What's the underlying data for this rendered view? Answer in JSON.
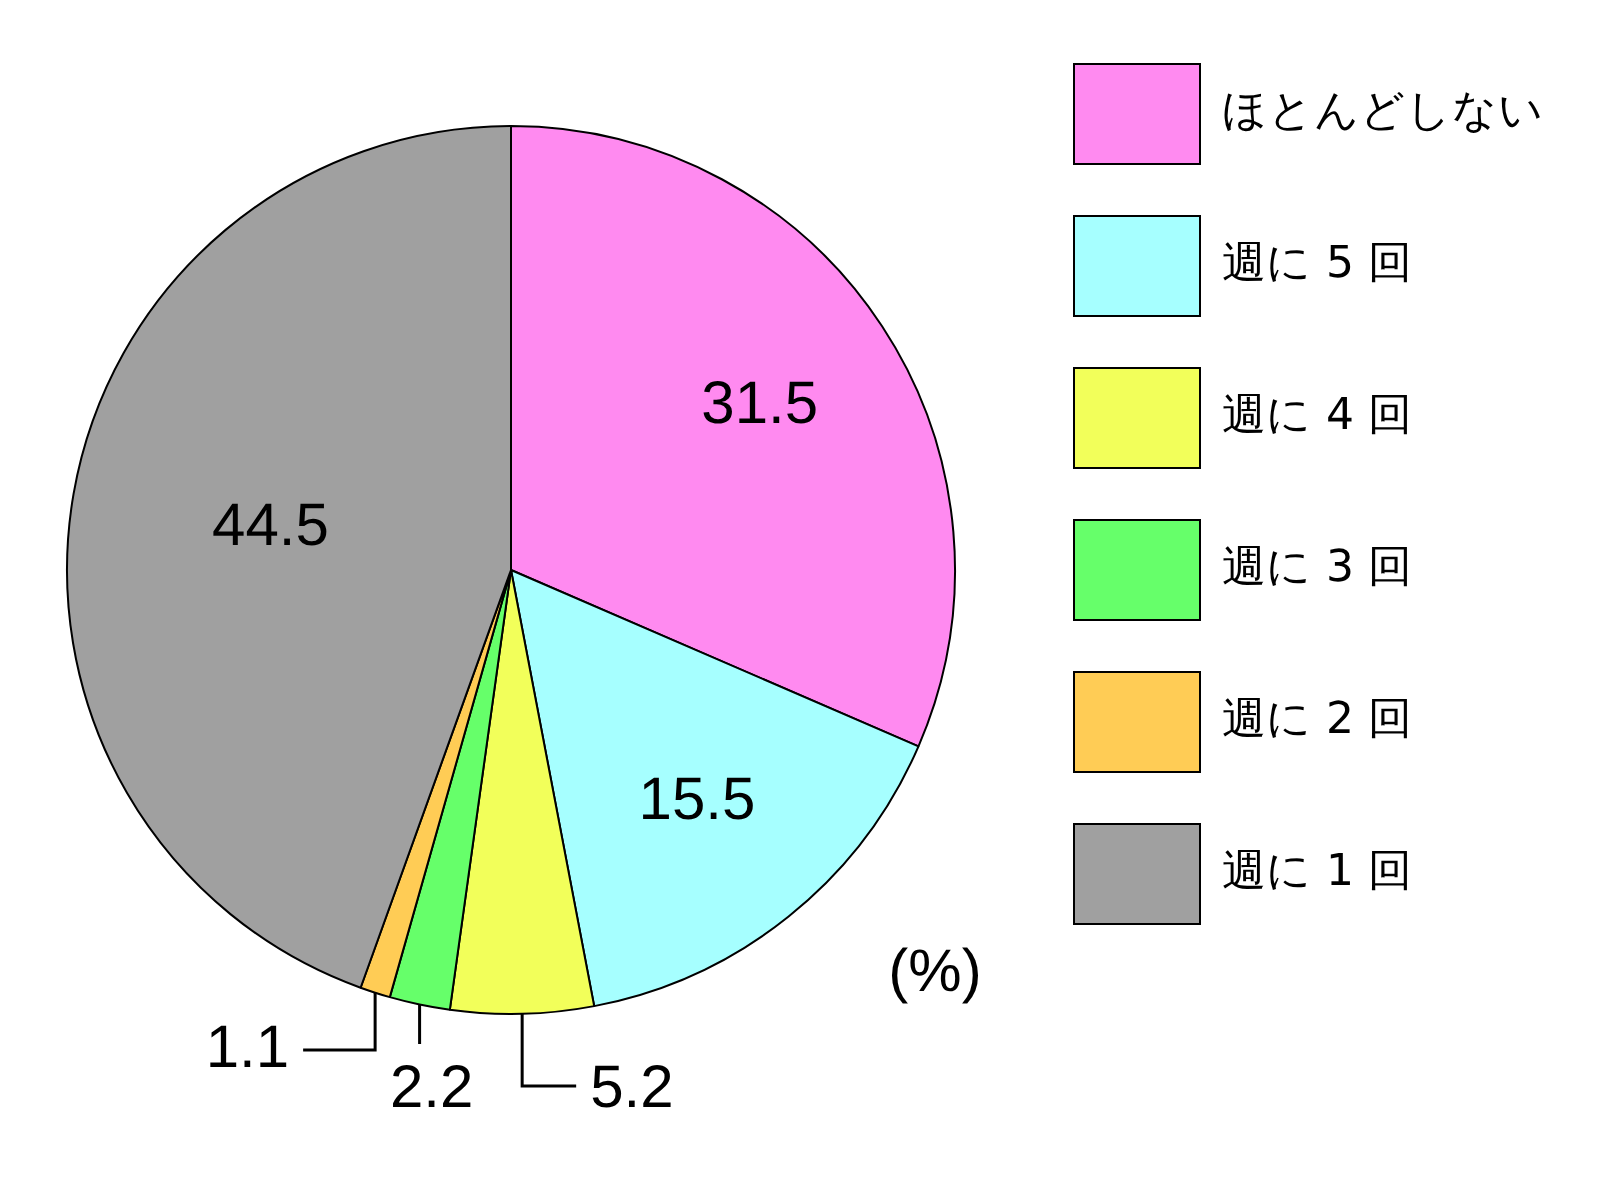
{
  "chart_data": {
    "type": "pie",
    "categories": [
      "ほとんどしない",
      "週に 5 回",
      "週に 4 回",
      "週に 3 回",
      "週に 2 回",
      "週に 1 回"
    ],
    "values": [
      31.5,
      15.5,
      5.2,
      2.2,
      1.1,
      44.5
    ],
    "colors": [
      "#ff8af0",
      "#a6ffff",
      "#f2ff5a",
      "#66ff6a",
      "#ffcc55",
      "#a0a0a0"
    ],
    "data_labels": true,
    "legend": "top right",
    "annotations": [
      "(%)"
    ]
  }
}
